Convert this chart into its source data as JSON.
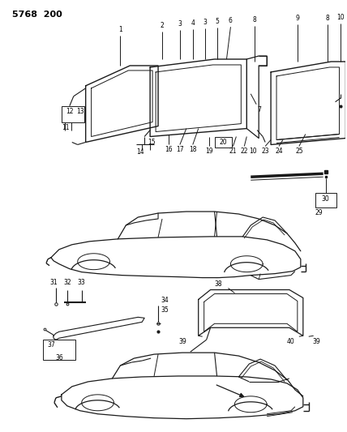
{
  "bg_color": "#ffffff",
  "line_color": "#1a1a1a",
  "title": "5768  200",
  "fig_width": 4.28,
  "fig_height": 5.33,
  "dpi": 100
}
